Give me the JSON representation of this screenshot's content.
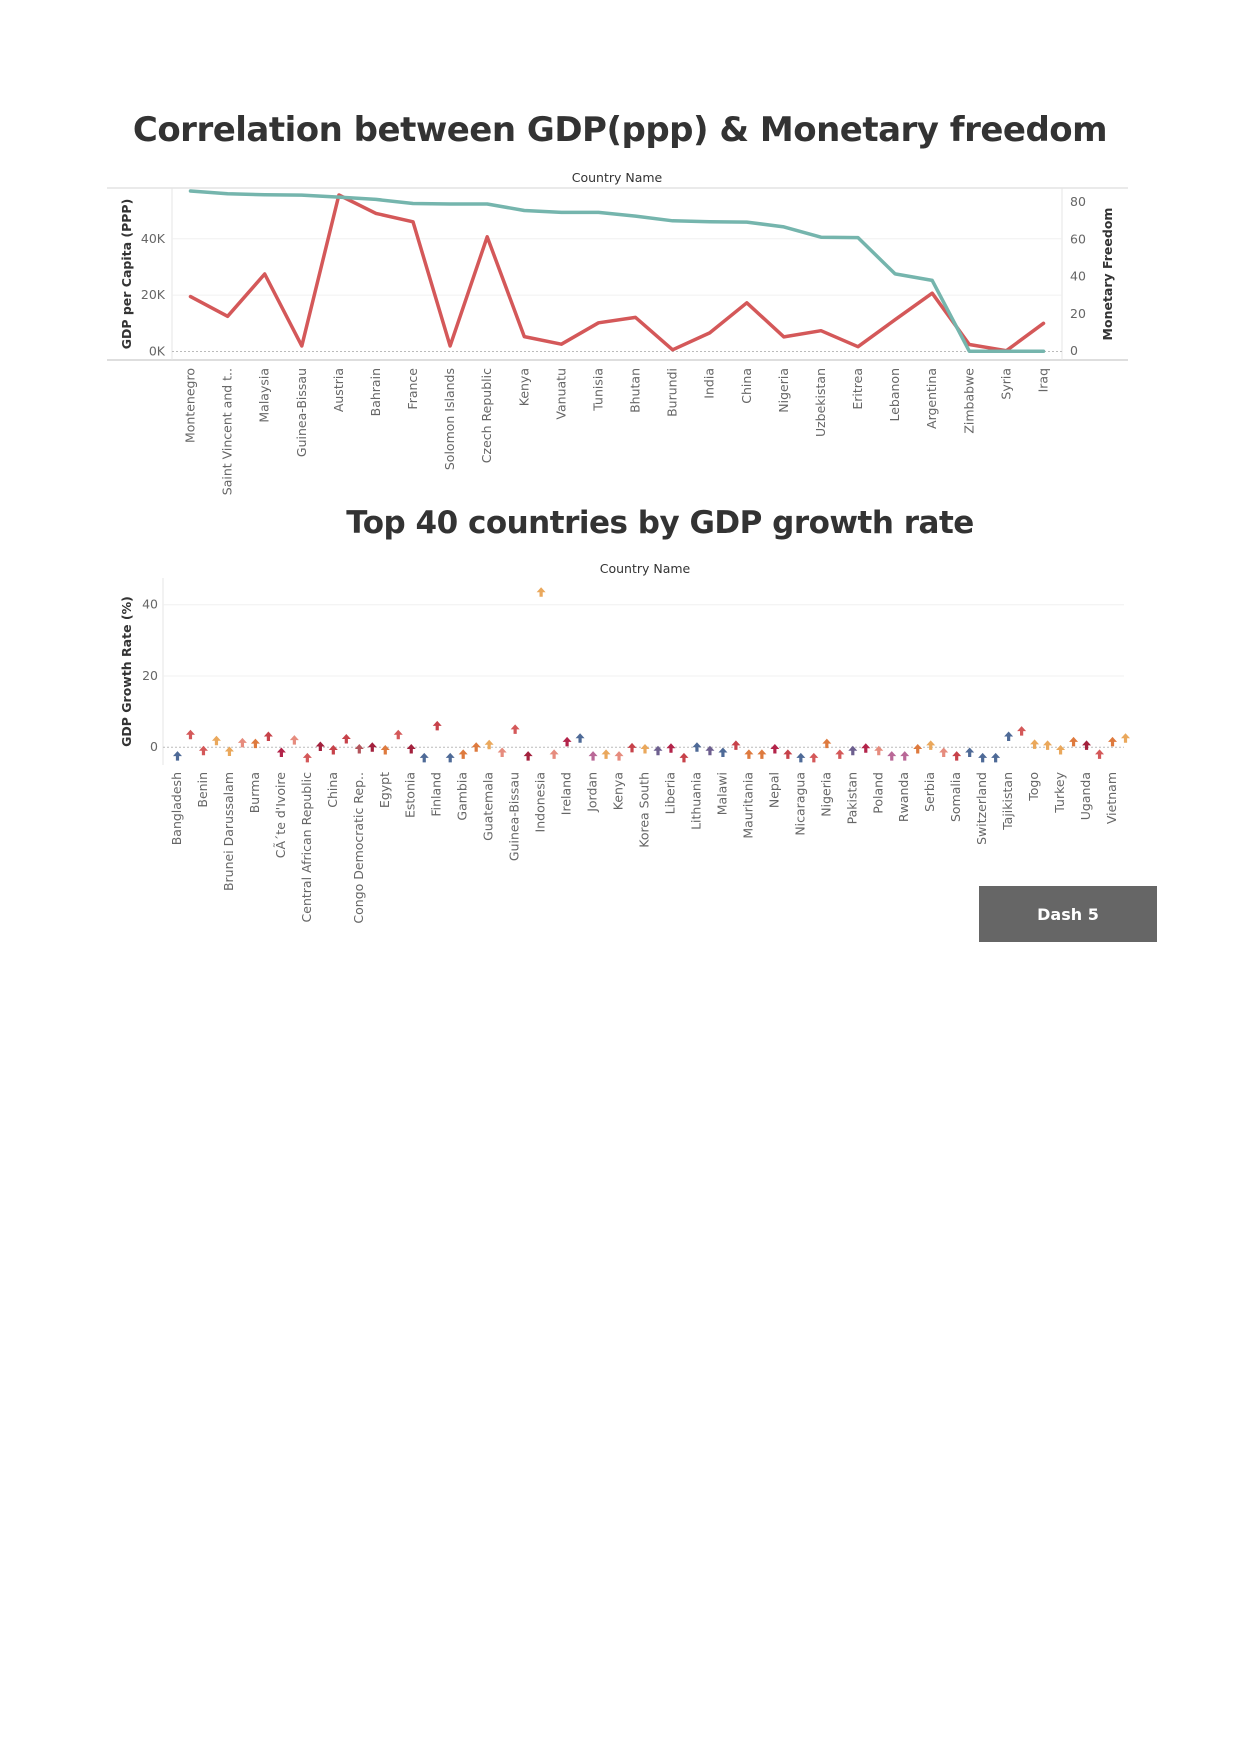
{
  "chart_data": [
    {
      "type": "line",
      "title": "Correlation between GDP(ppp) & Monetary freedom",
      "header": "Country Name",
      "categories": [
        "Montenegro",
        "Saint Vincent and t..",
        "Malaysia",
        "Guinea-Bissau",
        "Austria",
        "Bahrain",
        "France",
        "Solomon Islands",
        "Czech Republic",
        "Kenya",
        "Vanuatu",
        "Tunisia",
        "Bhutan",
        "Burundi",
        "India",
        "China",
        "Nigeria",
        "Uzbekistan",
        "Eritrea",
        "Lebanon",
        "Argentina",
        "Zimbabwe",
        "Syria",
        "Iraq"
      ],
      "y_left": {
        "label": "GDP per Capita (PPP)",
        "ticks": [
          "0K",
          "20K",
          "40K"
        ],
        "tick_values": [
          0,
          20000,
          40000
        ],
        "range": [
          -3000,
          58000
        ]
      },
      "y_right": {
        "label": "Monetary Freedom",
        "ticks": [
          "0",
          "20",
          "40",
          "60",
          "80"
        ],
        "tick_values": [
          0,
          20,
          40,
          60,
          80
        ],
        "range": [
          -4.7,
          87.6
        ]
      },
      "series": [
        {
          "name": "GDP per Capita (PPP)",
          "axis": "left",
          "color": "#d45859",
          "values": [
            19500,
            12500,
            27500,
            2000,
            55500,
            49000,
            46000,
            2000,
            40700,
            5300,
            2600,
            10200,
            12100,
            600,
            6600,
            17300,
            5200,
            7400,
            1700,
            11300,
            20700,
            2500,
            300,
            10000
          ]
        },
        {
          "name": "Monetary Freedom",
          "axis": "right",
          "color": "#75b5ad",
          "values": [
            86,
            84.5,
            84,
            83.8,
            82.7,
            81.5,
            79.3,
            79,
            79,
            75.5,
            74.5,
            74.5,
            72.5,
            70,
            69.5,
            69.3,
            66.7,
            61.2,
            61,
            41.5,
            38,
            0,
            0,
            0
          ]
        }
      ]
    },
    {
      "type": "scatter",
      "title": "Top 40 countries by GDP growth rate",
      "header": "Country Name",
      "ylabel": "GDP Growth Rate (%)",
      "yticks": [
        "0",
        "20",
        "40"
      ],
      "ytick_values": [
        0,
        20,
        40
      ],
      "ylim": [
        -5,
        47.5
      ],
      "labels": [
        "Bangladesh",
        "Benin",
        "Brunei Darussalam",
        "Burma",
        "CÃ´te d'Ivoire",
        "Central African Republic",
        "China",
        "Congo Democratic Rep..",
        "Egypt",
        "Estonia",
        "Finland",
        "Gambia",
        "Guatemala",
        "Guinea-Bissau",
        "Indonesia",
        "Ireland",
        "Jordan",
        "Kenya",
        "Korea South",
        "Liberia",
        "Lithuania",
        "Malawi",
        "Mauritania",
        "Nepal",
        "Nicaragua",
        "Nigeria",
        "Pakistan",
        "Poland",
        "Rwanda",
        "Serbia",
        "Somalia",
        "Switzerland",
        "Tajikistan",
        "Togo",
        "Turkey",
        "Uganda",
        "Vietnam"
      ],
      "points": [
        {
          "v": -2.5,
          "color": "#4e6a97"
        },
        {
          "v": 3.5,
          "color": "#d45859"
        },
        {
          "v": -1.0,
          "color": "#d45859"
        },
        {
          "v": 1.8,
          "color": "#eaa85c"
        },
        {
          "v": -1.2,
          "color": "#eaa85c"
        },
        {
          "v": 1.2,
          "color": "#e68c7e"
        },
        {
          "v": 1.0,
          "color": "#de7a3e"
        },
        {
          "v": 3.0,
          "color": "#c7424a"
        },
        {
          "v": -1.5,
          "color": "#b3244a"
        },
        {
          "v": 2.0,
          "color": "#e68c7e"
        },
        {
          "v": -3.0,
          "color": "#d45859"
        },
        {
          "v": 0.2,
          "color": "#a3213d"
        },
        {
          "v": -0.8,
          "color": "#c7424a"
        },
        {
          "v": 2.3,
          "color": "#c7424a"
        },
        {
          "v": -0.5,
          "color": "#b3555c"
        },
        {
          "v": 0.0,
          "color": "#a3213d"
        },
        {
          "v": -0.8,
          "color": "#de7a3e"
        },
        {
          "v": 3.5,
          "color": "#d45859"
        },
        {
          "v": -0.5,
          "color": "#a3213d"
        },
        {
          "v": -3.0,
          "color": "#4e6a97"
        },
        {
          "v": 6.0,
          "color": "#c7424a"
        },
        {
          "v": -3.0,
          "color": "#4e6a97"
        },
        {
          "v": -2.0,
          "color": "#de7a3e"
        },
        {
          "v": 0.0,
          "color": "#de7a3e"
        },
        {
          "v": 0.7,
          "color": "#eaa85c"
        },
        {
          "v": -1.5,
          "color": "#e68c7e"
        },
        {
          "v": 5.0,
          "color": "#d45859"
        },
        {
          "v": -2.5,
          "color": "#a3213d"
        },
        {
          "v": 43.5,
          "color": "#eaa85c"
        },
        {
          "v": -2.0,
          "color": "#e68c7e"
        },
        {
          "v": 1.5,
          "color": "#b3244a"
        },
        {
          "v": 2.5,
          "color": "#4e6a97"
        },
        {
          "v": -2.5,
          "color": "#b96897"
        },
        {
          "v": -2.0,
          "color": "#eaa85c"
        },
        {
          "v": -2.5,
          "color": "#e68c7e"
        },
        {
          "v": -0.2,
          "color": "#c7424a"
        },
        {
          "v": -0.5,
          "color": "#eaa85c"
        },
        {
          "v": -1.0,
          "color": "#6d5f8f"
        },
        {
          "v": -0.3,
          "color": "#b3244a"
        },
        {
          "v": -3.0,
          "color": "#c7424a"
        },
        {
          "v": 0.0,
          "color": "#4e6a97"
        },
        {
          "v": -1.0,
          "color": "#6d5f8f"
        },
        {
          "v": -1.5,
          "color": "#4e6a97"
        },
        {
          "v": 0.5,
          "color": "#c7424a"
        },
        {
          "v": -2.0,
          "color": "#de7a3e"
        },
        {
          "v": -2.0,
          "color": "#de7a3e"
        },
        {
          "v": -0.5,
          "color": "#b3244a"
        },
        {
          "v": -2.0,
          "color": "#c7424a"
        },
        {
          "v": -3.0,
          "color": "#4e6a97"
        },
        {
          "v": -3.0,
          "color": "#d45859"
        },
        {
          "v": 1.0,
          "color": "#de7a3e"
        },
        {
          "v": -2.0,
          "color": "#d45859"
        },
        {
          "v": -1.0,
          "color": "#6d5f8f"
        },
        {
          "v": -0.3,
          "color": "#b3244a"
        },
        {
          "v": -1.0,
          "color": "#e68c7e"
        },
        {
          "v": -2.5,
          "color": "#b96897"
        },
        {
          "v": -2.5,
          "color": "#b96897"
        },
        {
          "v": -0.5,
          "color": "#de7a3e"
        },
        {
          "v": 0.5,
          "color": "#eaa85c"
        },
        {
          "v": -1.5,
          "color": "#e68c7e"
        },
        {
          "v": -2.5,
          "color": "#c7424a"
        },
        {
          "v": -1.5,
          "color": "#4e6a97"
        },
        {
          "v": -3.0,
          "color": "#4e6a97"
        },
        {
          "v": -3.0,
          "color": "#4e6a97"
        },
        {
          "v": 3.0,
          "color": "#4e6a97"
        },
        {
          "v": 4.5,
          "color": "#d45859"
        },
        {
          "v": 0.8,
          "color": "#eaa85c"
        },
        {
          "v": 0.5,
          "color": "#eaa85c"
        },
        {
          "v": -0.8,
          "color": "#eaa85c"
        },
        {
          "v": 1.5,
          "color": "#de7a3e"
        },
        {
          "v": 0.5,
          "color": "#a3213d"
        },
        {
          "v": -2.0,
          "color": "#d45859"
        },
        {
          "v": 1.5,
          "color": "#de7a3e"
        },
        {
          "v": 2.5,
          "color": "#eaa85c"
        }
      ]
    }
  ],
  "nav": {
    "dash_button_label": "Dash 5"
  }
}
